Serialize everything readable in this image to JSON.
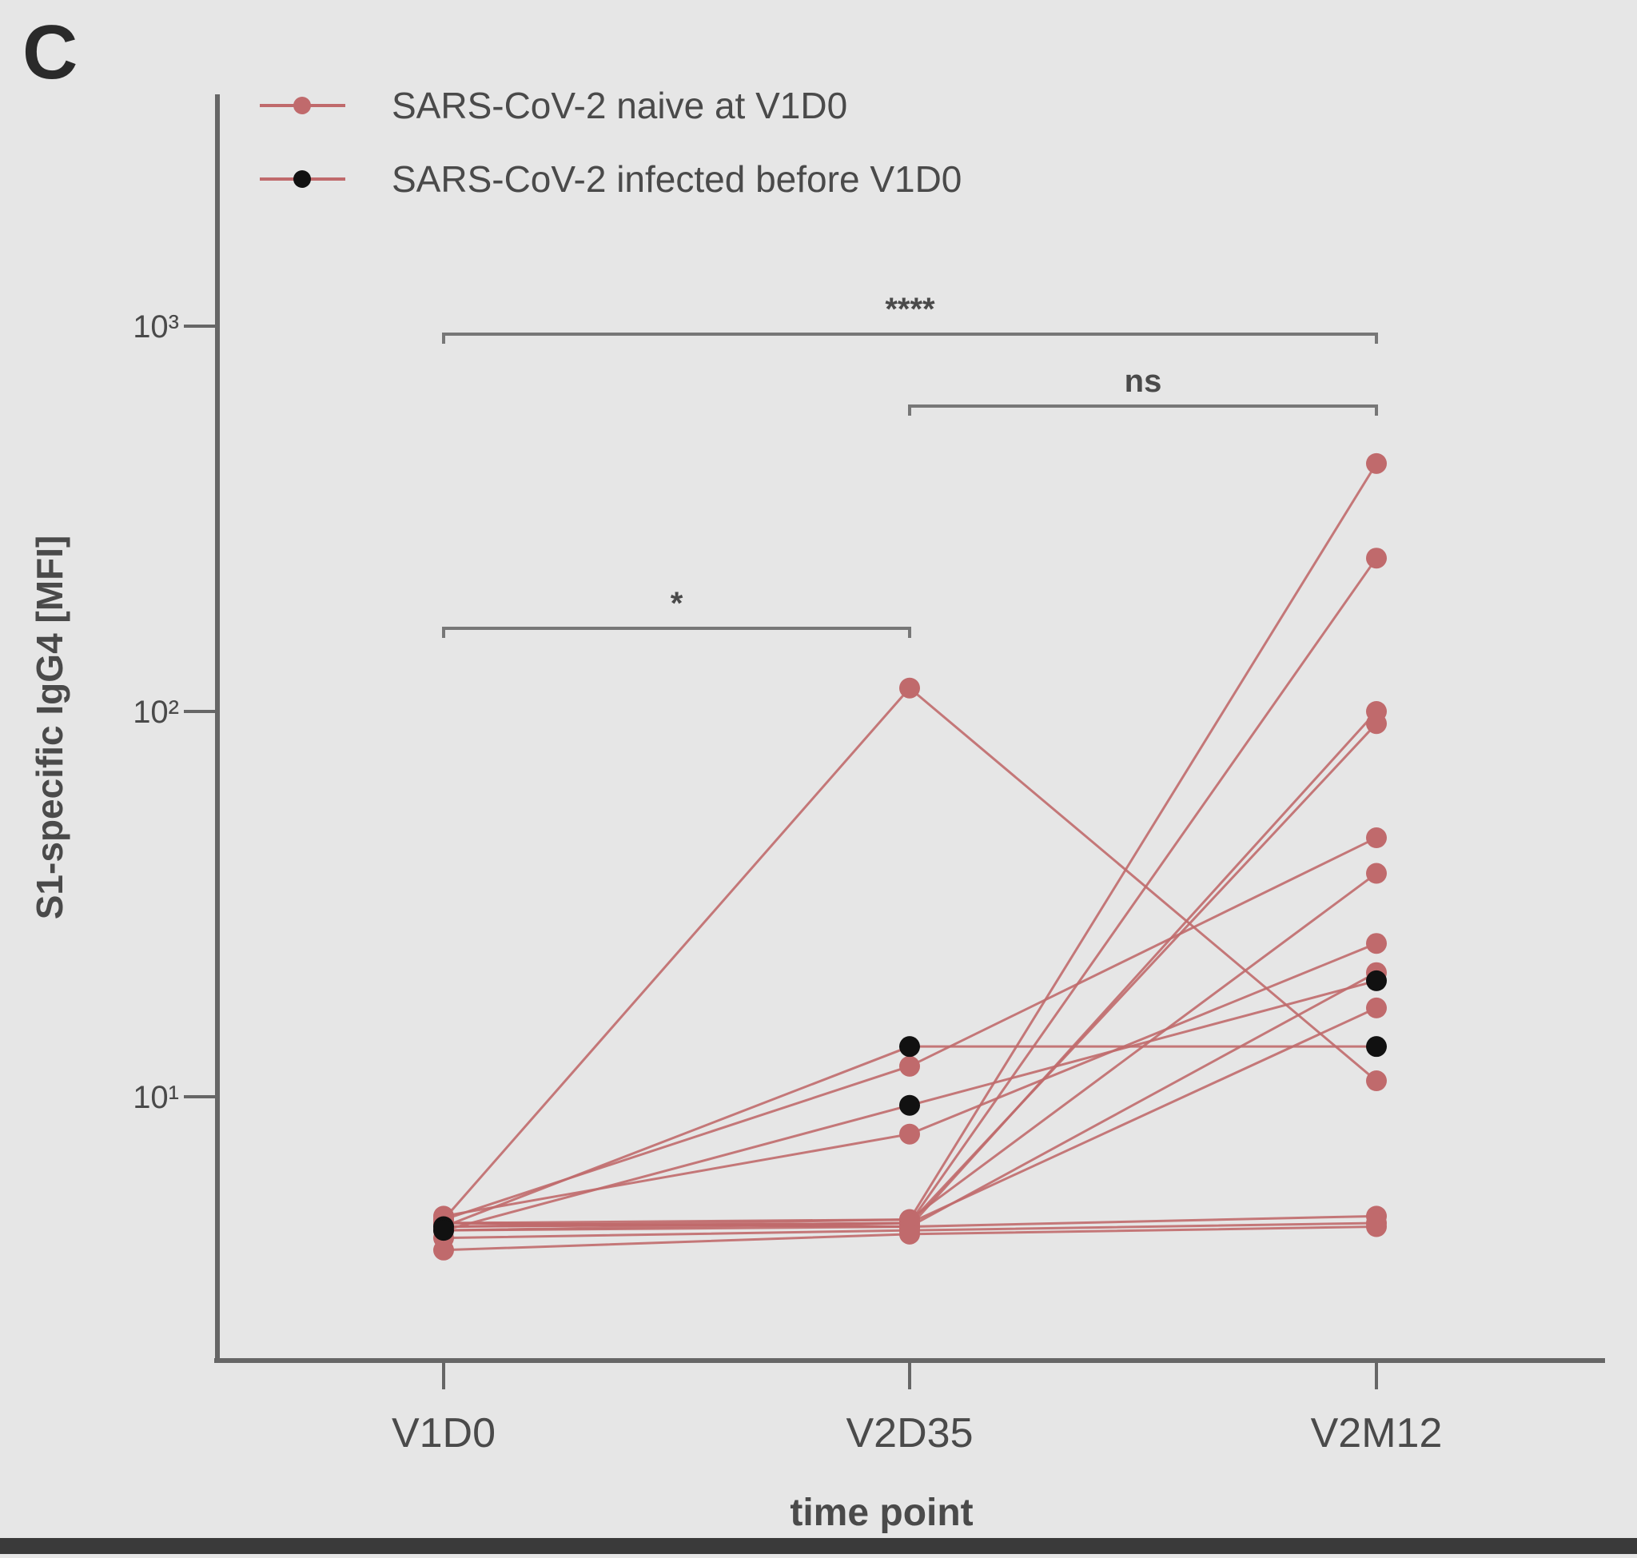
{
  "panel_label": "C",
  "colors": {
    "background": "#e6e6e6",
    "naive": "#c06a6c",
    "infected": "#111111",
    "axis": "#666666",
    "text": "#4a4a4a"
  },
  "chart_data": {
    "type": "line",
    "xlabel": "time point",
    "ylabel": "S1-specific IgG4 [MFI]",
    "yscale": "log",
    "ylim": [
      2,
      1000
    ],
    "yticks": [
      {
        "value": 10,
        "label": "10¹"
      },
      {
        "value": 100,
        "label": "10²"
      },
      {
        "value": 1000,
        "label": "10³"
      }
    ],
    "categories": [
      "V1D0",
      "V2D35",
      "V2M12"
    ],
    "legend": {
      "position": "top-left",
      "entries": [
        {
          "label": "SARS-CoV-2 naive at V1D0",
          "color": "#c06a6c"
        },
        {
          "label": "SARS-CoV-2 infected before V1D0",
          "color": "#111111"
        }
      ]
    },
    "series": [
      {
        "group": "naive",
        "values": [
          4.8,
          115,
          11
        ]
      },
      {
        "group": "naive",
        "values": [
          4.7,
          4.8,
          440
        ]
      },
      {
        "group": "naive",
        "values": [
          4.6,
          4.7,
          250
        ]
      },
      {
        "group": "naive",
        "values": [
          4.7,
          4.6,
          100
        ]
      },
      {
        "group": "naive",
        "values": [
          4.6,
          4.7,
          93
        ]
      },
      {
        "group": "naive",
        "values": [
          4.8,
          12,
          47
        ]
      },
      {
        "group": "naive",
        "values": [
          4.6,
          4.8,
          38
        ]
      },
      {
        "group": "naive",
        "values": [
          4.9,
          8,
          25
        ]
      },
      {
        "group": "naive",
        "values": [
          4.5,
          4.6,
          21
        ]
      },
      {
        "group": "naive",
        "values": [
          4.5,
          4.7,
          17
        ]
      },
      {
        "group": "naive",
        "values": [
          4.7,
          4.6,
          4.9
        ]
      },
      {
        "group": "naive",
        "values": [
          4.3,
          4.5,
          4.7
        ]
      },
      {
        "group": "naive",
        "values": [
          4.0,
          4.4,
          4.6
        ]
      },
      {
        "group": "infected",
        "values": [
          4.6,
          13.5,
          13.5
        ]
      },
      {
        "group": "infected",
        "values": [
          4.5,
          9.5,
          20
        ]
      }
    ],
    "significance": [
      {
        "from": "V1D0",
        "to": "V2M12",
        "label": "****",
        "level": 1
      },
      {
        "from": "V2D35",
        "to": "V2M12",
        "label": "ns",
        "level": 2
      },
      {
        "from": "V1D0",
        "to": "V2D35",
        "label": "*",
        "level": 3
      }
    ]
  }
}
